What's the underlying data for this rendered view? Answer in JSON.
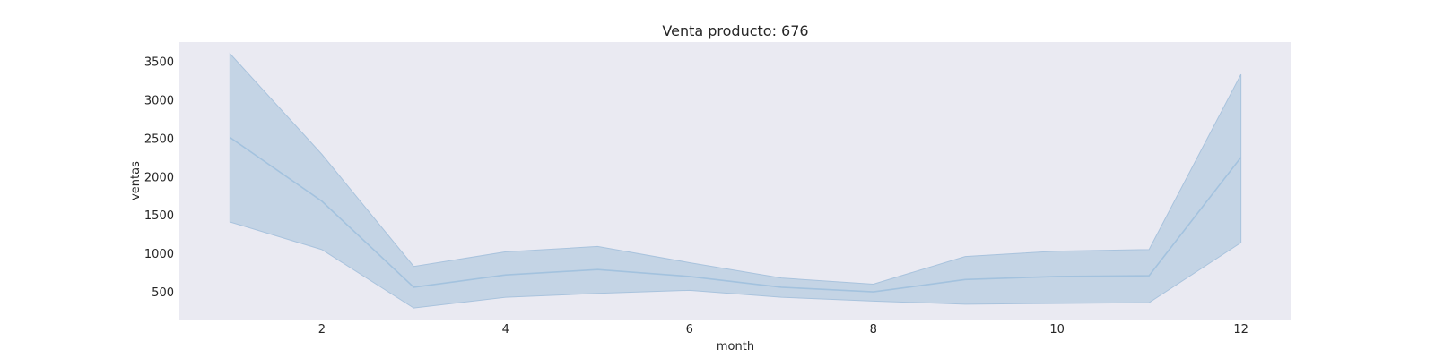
{
  "chart_data": {
    "type": "line",
    "title": "Venta producto: 676",
    "xlabel": "month",
    "ylabel": "ventas",
    "xlim": [
      0.45,
      12.55
    ],
    "ylim": [
      140,
      3750
    ],
    "xticks": [
      2,
      4,
      6,
      8,
      10,
      12
    ],
    "yticks": [
      500,
      1000,
      1500,
      2000,
      2500,
      3000,
      3500
    ],
    "grid": false,
    "colors": {
      "background": "#eaeaf2",
      "line": "#a3c2de",
      "band_fill": "#c4d4e5",
      "band_edge": "#a9c3dd"
    },
    "series": [
      {
        "x": [
          1,
          2,
          3,
          4,
          5,
          6,
          7,
          8,
          9,
          10,
          11,
          12
        ],
        "values": [
          2510,
          1680,
          560,
          720,
          790,
          700,
          560,
          500,
          660,
          700,
          710,
          2250
        ],
        "lower": [
          1410,
          1050,
          290,
          430,
          480,
          520,
          430,
          380,
          340,
          350,
          360,
          1140
        ],
        "upper": [
          3600,
          2290,
          830,
          1020,
          1090,
          880,
          680,
          600,
          960,
          1030,
          1050,
          3330
        ]
      }
    ]
  }
}
